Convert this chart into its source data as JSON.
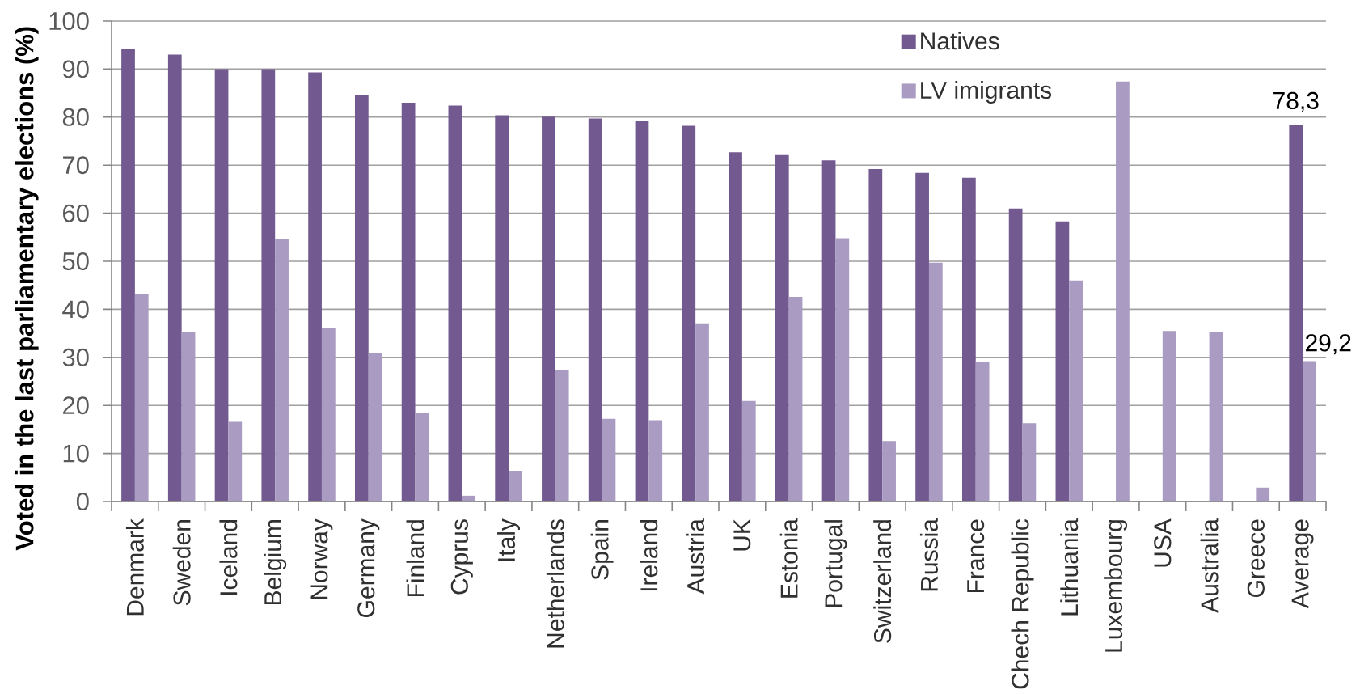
{
  "chart_data": {
    "type": "bar",
    "ylabel": "Voted in the last parliamentary elections (%)",
    "categories": [
      "Denmark",
      "Sweden",
      "Iceland",
      "Belgium",
      "Norway",
      "Germany",
      "Finland",
      "Cyprus",
      "Italy",
      "Netherlands",
      "Spain",
      "Ireland",
      "Austria",
      "UK",
      "Estonia",
      "Portugal",
      "Switzerland",
      "Russia",
      "France",
      "Chech Republic",
      "Lithuania",
      "Luxembourg",
      "USA",
      "Australia",
      "Greece",
      "Average"
    ],
    "series": [
      {
        "name": "Natives",
        "color": "#725A91",
        "values": [
          94.1,
          93.0,
          90.0,
          90.0,
          89.3,
          84.7,
          83.0,
          82.4,
          80.4,
          80.1,
          79.7,
          79.3,
          78.2,
          72.7,
          72.1,
          71.0,
          69.2,
          68.4,
          67.4,
          61.0,
          58.3,
          null,
          null,
          null,
          null,
          78.3
        ],
        "value_labels": [
          null,
          null,
          null,
          null,
          null,
          null,
          null,
          null,
          null,
          null,
          null,
          null,
          null,
          null,
          null,
          null,
          null,
          null,
          null,
          null,
          null,
          null,
          null,
          null,
          null,
          "78,3"
        ]
      },
      {
        "name": "LV imigrants",
        "color": "#A99BC1",
        "values": [
          43.1,
          35.2,
          16.6,
          54.6,
          36.1,
          30.8,
          18.5,
          1.2,
          6.4,
          27.4,
          17.2,
          16.9,
          37.1,
          20.9,
          42.6,
          54.8,
          12.6,
          49.7,
          29.0,
          16.3,
          46.0,
          87.4,
          35.5,
          35.2,
          2.9,
          29.2
        ],
        "value_labels": [
          null,
          null,
          null,
          null,
          null,
          null,
          null,
          null,
          null,
          null,
          null,
          null,
          null,
          null,
          null,
          null,
          null,
          null,
          null,
          null,
          null,
          null,
          null,
          null,
          null,
          "29,2"
        ]
      }
    ],
    "ylim": [
      0,
      100
    ],
    "yticks": [
      0,
      10,
      20,
      30,
      40,
      50,
      60,
      70,
      80,
      90,
      100
    ],
    "grid": "y",
    "legend": "top right"
  }
}
